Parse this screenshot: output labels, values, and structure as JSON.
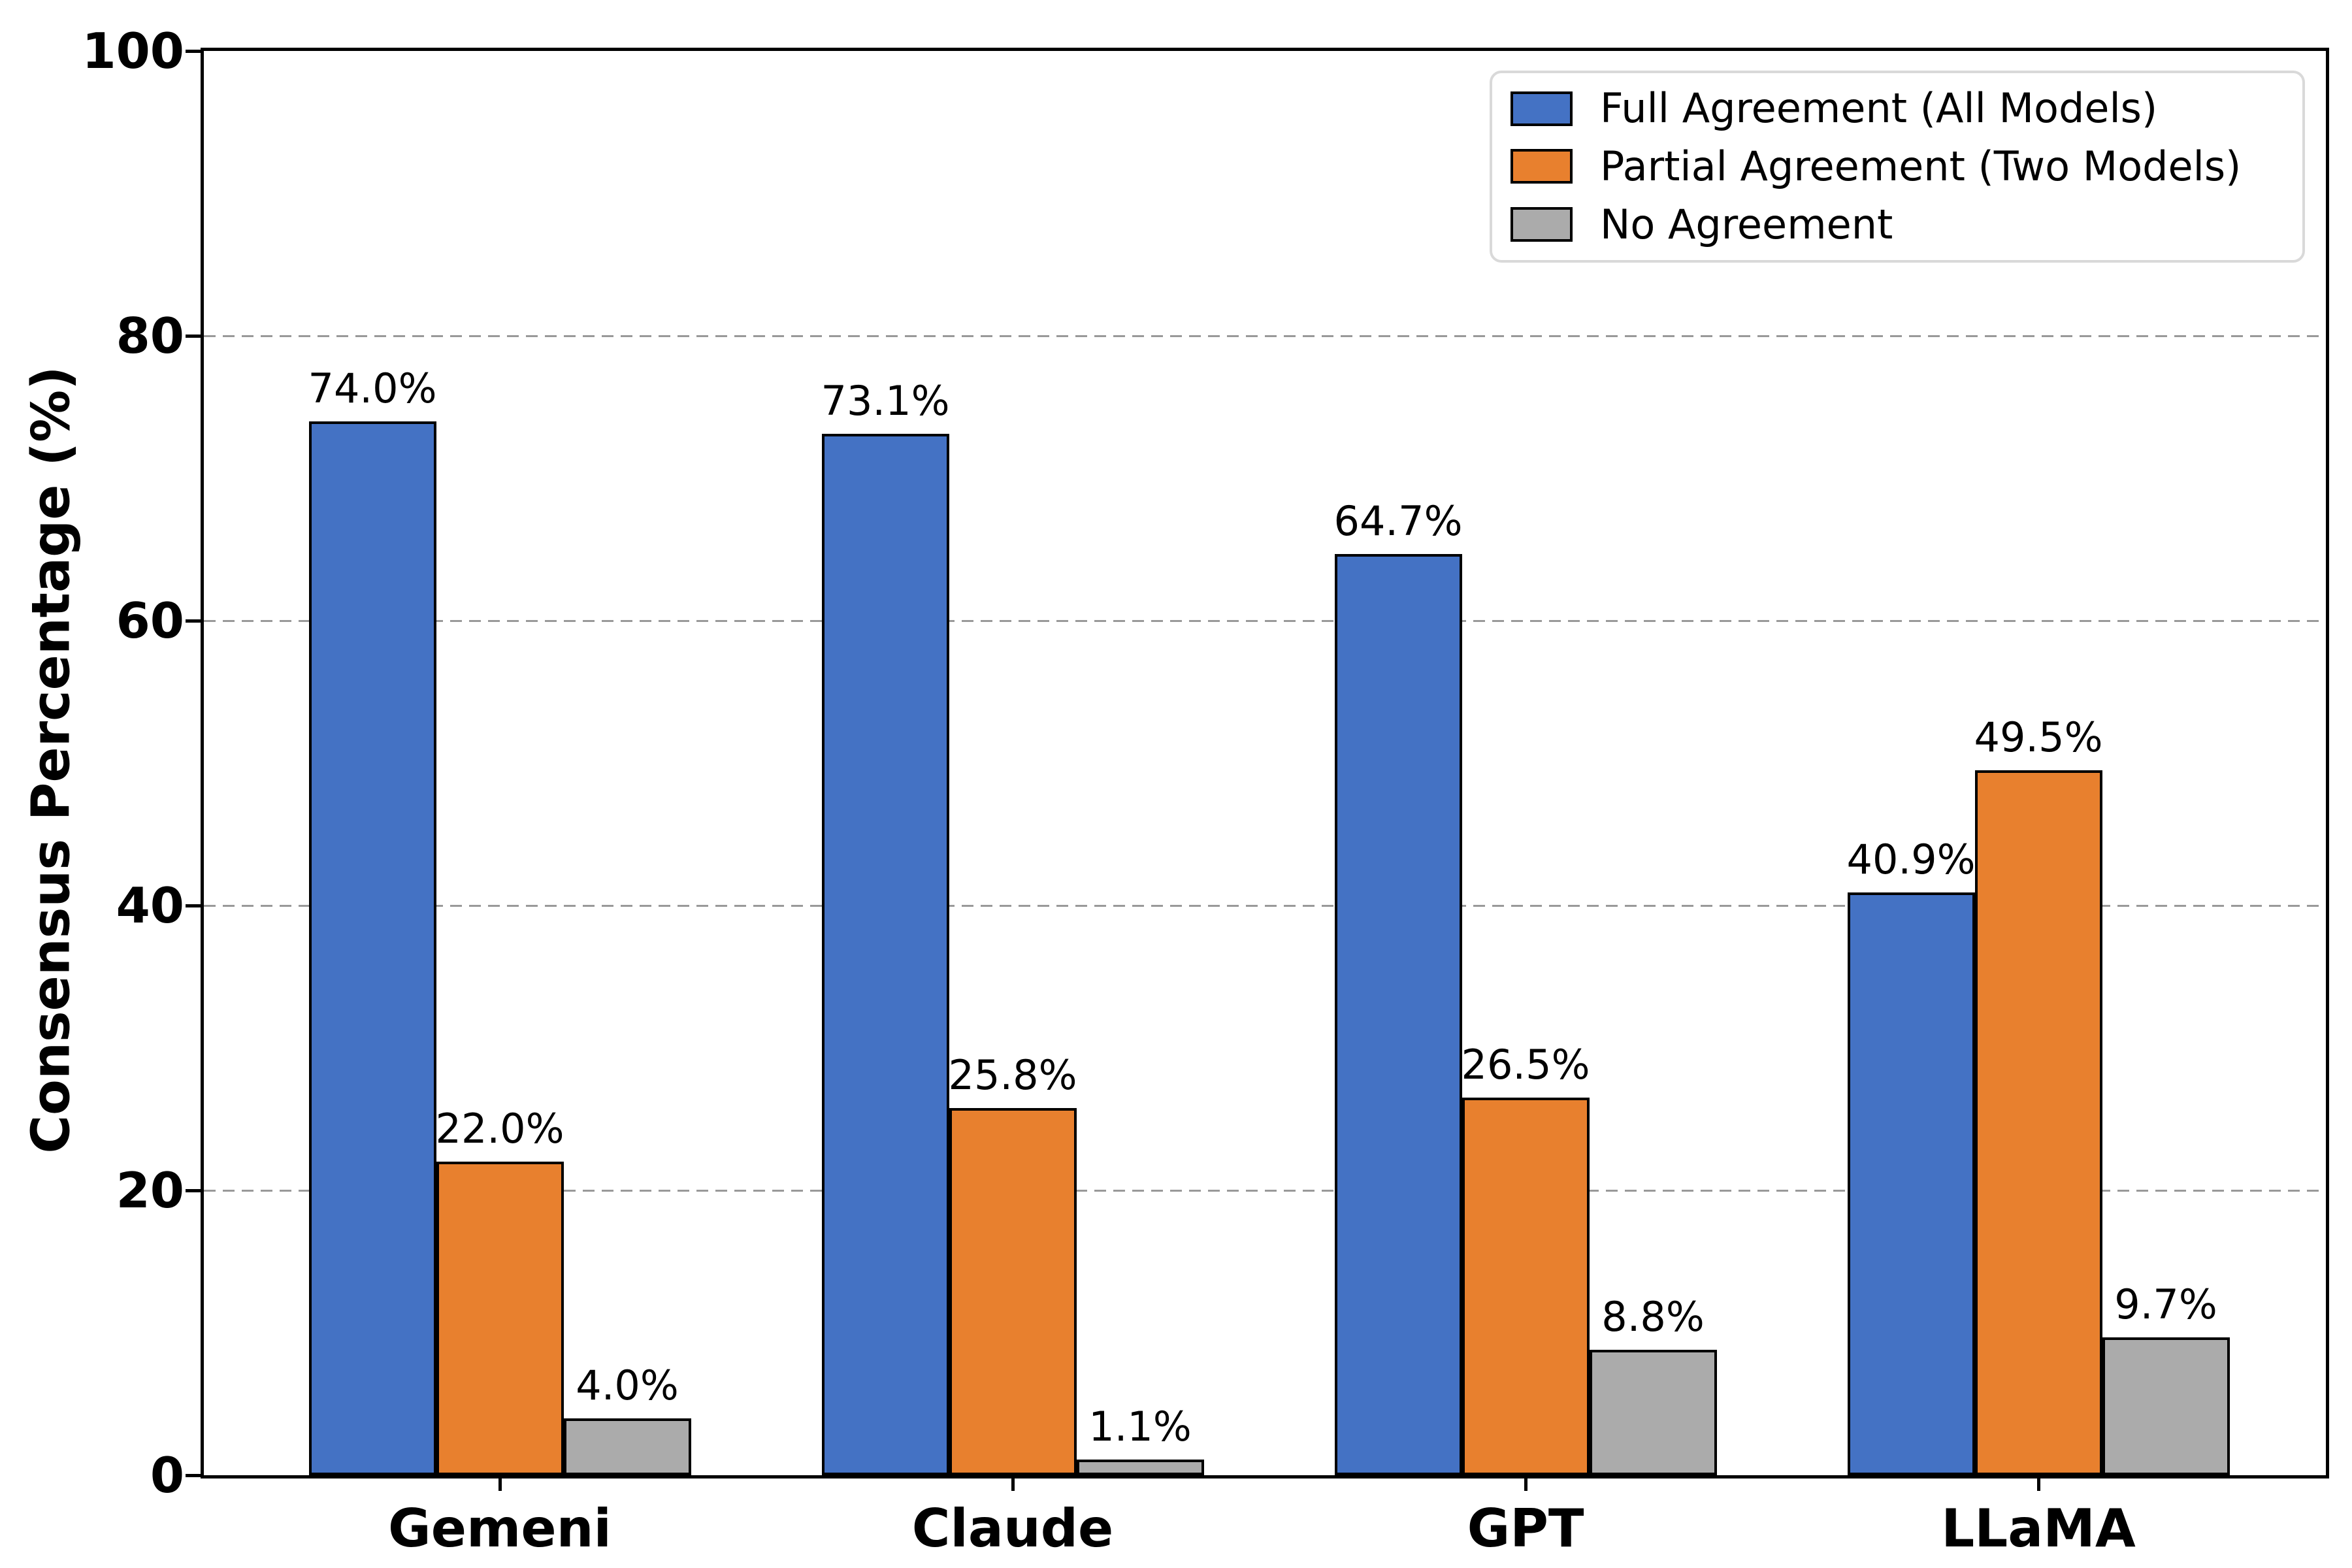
{
  "chart_data": {
    "type": "bar",
    "title": "",
    "xlabel": "",
    "ylabel": "Consensus Percentage (%)",
    "categories": [
      "Gemeni",
      "Claude",
      "GPT",
      "LLaMA"
    ],
    "series": [
      {
        "name": "Full Agreement (All Models)",
        "color": "#4472C4",
        "values": [
          74.0,
          73.1,
          64.7,
          40.9
        ],
        "value_labels": [
          "74.0%",
          "73.1%",
          "64.7%",
          "40.9%"
        ]
      },
      {
        "name": "Partial Agreement (Two Models)",
        "color": "#E8802E",
        "values": [
          22.0,
          25.8,
          26.5,
          49.5
        ],
        "value_labels": [
          "22.0%",
          "25.8%",
          "26.5%",
          "49.5%"
        ]
      },
      {
        "name": "No Agreement",
        "color": "#ABABAB",
        "values": [
          4.0,
          1.1,
          8.8,
          9.7
        ],
        "value_labels": [
          "4.0%",
          "1.1%",
          "8.8%",
          "9.7%"
        ]
      }
    ],
    "ylim": [
      0,
      100
    ],
    "yticks": [
      "0",
      "20",
      "40",
      "60",
      "80",
      "100"
    ],
    "grid": "horizontal dashed at 20/40/60/80",
    "legend_position": "upper right",
    "bar_edge_color": "#000000",
    "gridline_color": "#999999"
  }
}
